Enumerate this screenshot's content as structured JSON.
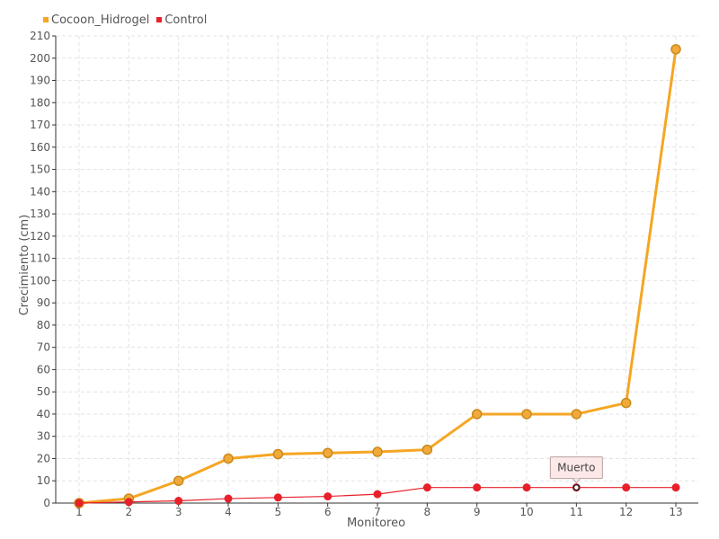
{
  "chart_data": {
    "type": "line",
    "categories": [
      "1",
      "2",
      "3",
      "4",
      "5",
      "6",
      "7",
      "8",
      "9",
      "10",
      "11",
      "12",
      "13"
    ],
    "series": [
      {
        "name": "Cocoon_Hidrogel",
        "color": "#f5a623",
        "values": [
          0,
          2,
          10,
          20,
          22,
          22.5,
          23,
          24,
          40,
          40,
          40,
          45,
          204
        ]
      },
      {
        "name": "Control",
        "color": "#e8202a",
        "values": [
          0,
          0.5,
          1,
          2,
          2.5,
          3,
          4,
          7,
          7,
          7,
          7,
          7,
          7
        ]
      }
    ],
    "xlabel": "Monitoreo",
    "ylabel": "Crecimiento (cm)",
    "ylim": [
      0,
      210
    ],
    "ytick_step": 10,
    "grid": true,
    "legend_position": "top-left",
    "annotations": [
      {
        "text": "Muerto",
        "series": "Control",
        "category": "11"
      }
    ]
  }
}
